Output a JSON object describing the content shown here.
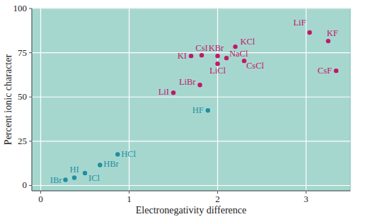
{
  "chart_data": {
    "type": "scatter",
    "x_label": "Electronegativity difference",
    "y_label": "Percent ionic character",
    "labels": [
      "IBr",
      "HI",
      "ICl",
      "HBr",
      "HCl",
      "HF",
      "LiI",
      "LiBr",
      "KI",
      "CsI",
      "KBr",
      "KCl",
      "NaCl",
      "LiCl",
      "CsCl",
      "LiF",
      "KF",
      "CsF"
    ],
    "x": [
      0.28,
      0.38,
      0.5,
      0.67,
      0.87,
      1.89,
      1.5,
      1.8,
      1.7,
      1.82,
      2.0,
      2.2,
      2.1,
      2.0,
      2.3,
      3.04,
      3.25,
      3.34
    ],
    "values": [
      3.2,
      4.4,
      7,
      11.6,
      17.6,
      42.4,
      52.4,
      56.8,
      73.2,
      73.6,
      73.2,
      78.4,
      72,
      68.8,
      70.4,
      86.4,
      81.6,
      64.8
    ],
    "colors": [
      "#1f8fa3",
      "#1f8fa3",
      "#1f8fa3",
      "#1f8fa3",
      "#1f8fa3",
      "#1f8fa3",
      "#c0186a",
      "#c0186a",
      "#c0186a",
      "#c0186a",
      "#c0186a",
      "#c0186a",
      "#c0186a",
      "#c0186a",
      "#c0186a",
      "#c0186a",
      "#c0186a",
      "#c0186a"
    ],
    "marker": "circle",
    "xlim": [
      -0.1,
      3.5
    ],
    "xticks": [
      0,
      1,
      2,
      3
    ],
    "ylim": [
      -3,
      100
    ],
    "yticks": [
      0,
      25,
      50,
      75,
      100
    ],
    "grid": true
  }
}
